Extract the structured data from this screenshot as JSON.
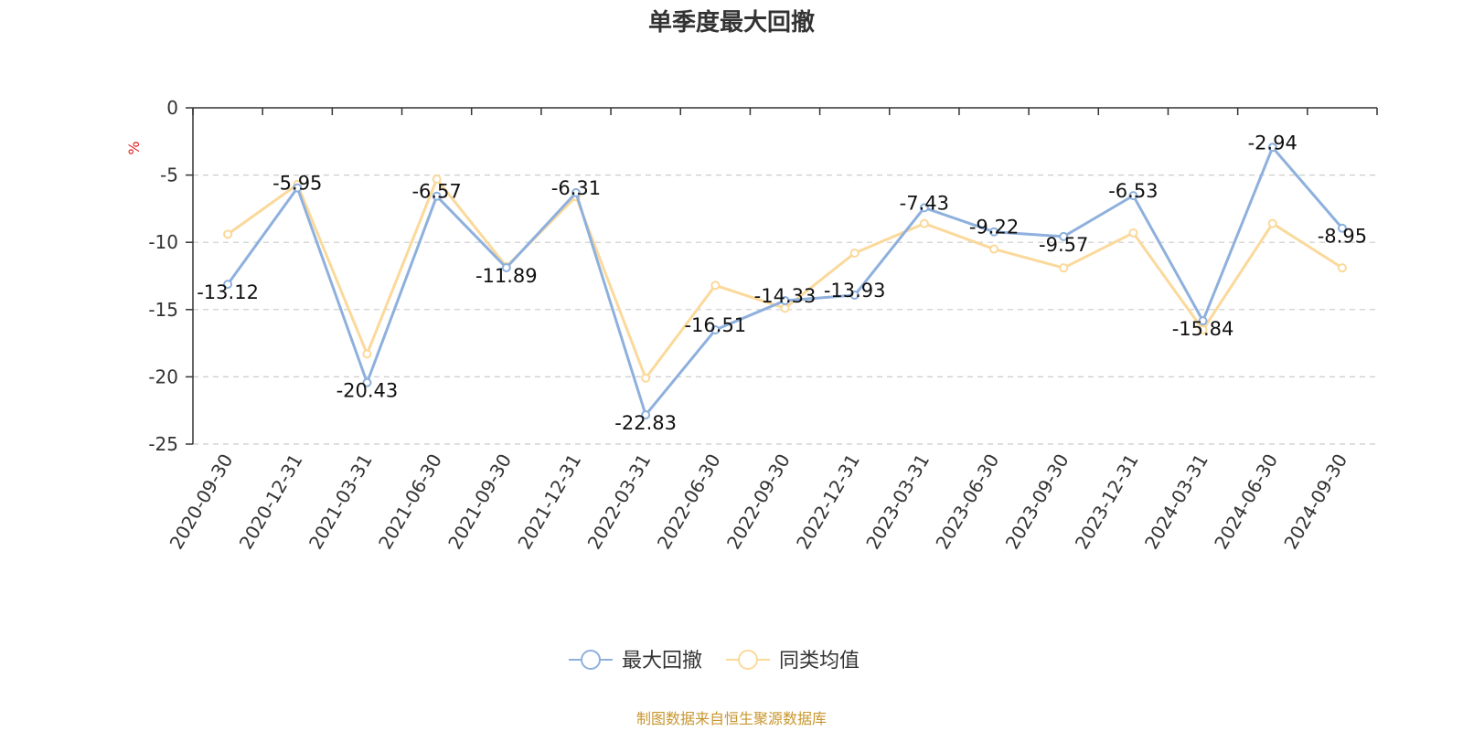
{
  "chart_data": {
    "type": "line",
    "title": "单季度最大回撤",
    "ylabel": "%",
    "ylim": [
      -25,
      0
    ],
    "yticks": [
      0,
      -5,
      -10,
      -15,
      -20,
      -25
    ],
    "grid": true,
    "legend_position": "bottom",
    "categories": [
      "2020-09-30",
      "2020-12-31",
      "2021-03-31",
      "2021-06-30",
      "2021-09-30",
      "2021-12-31",
      "2022-03-31",
      "2022-06-30",
      "2022-09-30",
      "2022-12-31",
      "2023-03-31",
      "2023-06-30",
      "2023-09-30",
      "2023-12-31",
      "2024-03-31",
      "2024-06-30",
      "2024-09-30"
    ],
    "series": [
      {
        "name": "最大回撤",
        "color": "#8eb0dd",
        "show_labels": true,
        "values": [
          -13.12,
          -5.95,
          -20.43,
          -6.57,
          -11.89,
          -6.31,
          -22.83,
          -16.51,
          -14.33,
          -13.93,
          -7.43,
          -9.22,
          -9.57,
          -6.53,
          -15.84,
          -2.94,
          -8.95
        ]
      },
      {
        "name": "同类均值",
        "color": "#fbd99b",
        "show_labels": false,
        "values": [
          -9.4,
          -5.7,
          -18.3,
          -5.3,
          -11.8,
          -6.6,
          -20.1,
          -13.2,
          -14.9,
          -10.8,
          -8.6,
          -10.5,
          -11.9,
          -9.3,
          -16.5,
          -8.6,
          -11.9
        ]
      }
    ]
  },
  "source_note": "制图数据来自恒生聚源数据库"
}
